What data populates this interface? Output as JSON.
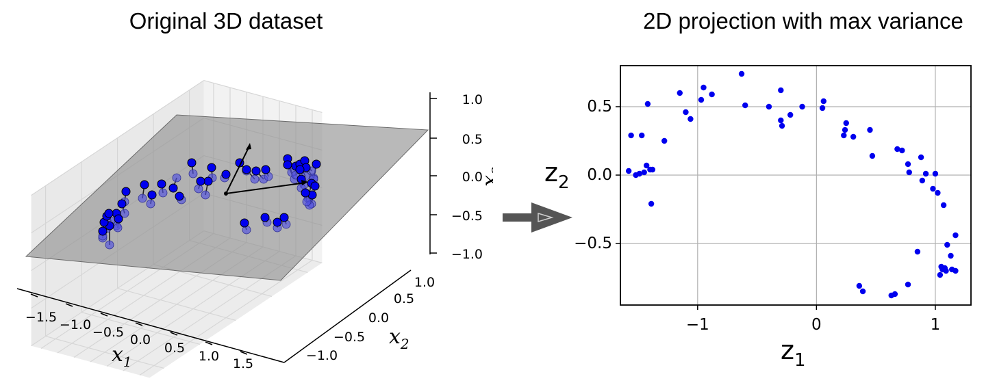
{
  "left_panel": {
    "title": "Original 3D dataset",
    "xlabel_base": "x",
    "xlabel_sub": "1",
    "ylabel_base": "x",
    "ylabel_sub": "2",
    "zlabel_base": "x",
    "zlabel_sub": "3",
    "x_ticks": [
      "−1.5",
      "−1.0",
      "−0.5",
      "0.0",
      "0.5",
      "1.0",
      "1.5"
    ],
    "y_ticks": [
      "−1.0",
      "−0.5",
      "0.0",
      "0.5",
      "1.0"
    ],
    "z_ticks": [
      "1.0",
      "0.5",
      "0.0",
      "−0.5",
      "−1.0"
    ]
  },
  "arrow": {
    "icon": "right-arrow-icon",
    "color": "#555555"
  },
  "chart_data": [
    {
      "type": "scatter",
      "title": "Original 3D dataset",
      "xlabel": "x1",
      "ylabel": "x2",
      "zlabel": "x3",
      "xlim": [
        -1.8,
        1.8
      ],
      "ylim": [
        -1.2,
        1.2
      ],
      "zlim": [
        -1.0,
        1.0
      ],
      "grid": true,
      "plane_color": "#808080",
      "point_color": "#0000ee"
    },
    {
      "type": "scatter",
      "title": "2D projection with max variance",
      "xlabel_base": "z",
      "xlabel_sub": "1",
      "ylabel_base": "z",
      "ylabel_sub": "2",
      "xlim": [
        -1.65,
        1.3
      ],
      "ylim": [
        -0.95,
        0.8
      ],
      "x_ticks": [
        -1,
        0,
        1
      ],
      "x_tick_labels": [
        "−1",
        "0",
        "1"
      ],
      "y_ticks": [
        -0.5,
        0.0,
        0.5
      ],
      "y_tick_labels": [
        "−0.5",
        "0.0",
        "0.5"
      ],
      "grid": true,
      "point_color": "#0000ee",
      "points": [
        [
          -1.58,
          0.03
        ],
        [
          -1.56,
          0.29
        ],
        [
          -1.52,
          0.0
        ],
        [
          -1.49,
          0.01
        ],
        [
          -1.47,
          0.29
        ],
        [
          -1.45,
          0.02
        ],
        [
          -1.43,
          0.07
        ],
        [
          -1.42,
          0.52
        ],
        [
          -1.4,
          0.04
        ],
        [
          -1.39,
          -0.21
        ],
        [
          -1.38,
          0.04
        ],
        [
          -1.28,
          0.25
        ],
        [
          -1.15,
          0.6
        ],
        [
          -1.1,
          0.46
        ],
        [
          -1.06,
          0.41
        ],
        [
          -0.97,
          0.55
        ],
        [
          -0.95,
          0.64
        ],
        [
          -0.88,
          0.59
        ],
        [
          -0.63,
          0.74
        ],
        [
          -0.6,
          0.51
        ],
        [
          -0.4,
          0.5
        ],
        [
          -0.3,
          0.62
        ],
        [
          -0.3,
          0.4
        ],
        [
          -0.29,
          0.36
        ],
        [
          -0.22,
          0.44
        ],
        [
          -0.12,
          0.5
        ],
        [
          0.05,
          0.49
        ],
        [
          0.06,
          0.54
        ],
        [
          0.23,
          0.29
        ],
        [
          0.24,
          0.33
        ],
        [
          0.25,
          0.38
        ],
        [
          0.31,
          0.28
        ],
        [
          0.45,
          0.33
        ],
        [
          0.47,
          0.14
        ],
        [
          0.68,
          0.19
        ],
        [
          0.72,
          0.18
        ],
        [
          0.77,
          0.08
        ],
        [
          0.78,
          0.02
        ],
        [
          0.88,
          0.13
        ],
        [
          0.89,
          -0.04
        ],
        [
          0.92,
          0.01
        ],
        [
          1.0,
          0.01
        ],
        [
          0.98,
          -0.1
        ],
        [
          1.02,
          -0.13
        ],
        [
          1.07,
          -0.22
        ],
        [
          1.1,
          -0.51
        ],
        [
          1.13,
          -0.59
        ],
        [
          1.17,
          -0.44
        ],
        [
          1.14,
          -0.69
        ],
        [
          1.17,
          -0.7
        ],
        [
          1.05,
          -0.67
        ],
        [
          1.06,
          -0.69
        ],
        [
          1.09,
          -0.7
        ],
        [
          1.04,
          -0.73
        ],
        [
          1.08,
          -0.68
        ],
        [
          0.85,
          -0.56
        ],
        [
          0.77,
          -0.8
        ],
        [
          0.66,
          -0.87
        ],
        [
          0.63,
          -0.88
        ],
        [
          0.36,
          -0.81
        ],
        [
          0.39,
          -0.85
        ]
      ]
    }
  ]
}
